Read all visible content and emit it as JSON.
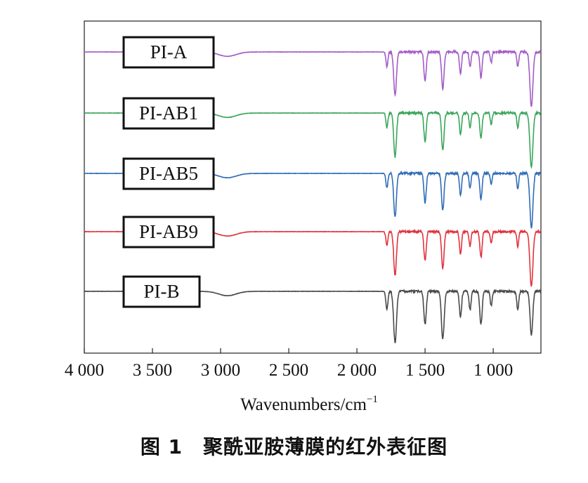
{
  "chart_data": {
    "type": "line",
    "title": "",
    "xlabel": "Wavenumbers/cm",
    "xlabel_superscript": "−1",
    "ylabel": "",
    "xlim": [
      4000,
      650
    ],
    "x_reversed": true,
    "y_ticks_shown": false,
    "grid": false,
    "x_ticks": [
      {
        "value": 4000,
        "label": "4 000"
      },
      {
        "value": 3500,
        "label": "3 500"
      },
      {
        "value": 3000,
        "label": "3 000"
      },
      {
        "value": 2500,
        "label": "2 500"
      },
      {
        "value": 2000,
        "label": "2 000"
      },
      {
        "value": 1500,
        "label": "1 500"
      },
      {
        "value": 1000,
        "label": "1 000"
      }
    ],
    "series": [
      {
        "name": "PI-A",
        "color": "#a45cc6",
        "baseline_offset": 4,
        "peaks": [
          [
            1780,
            4
          ],
          [
            1720,
            12
          ],
          [
            1500,
            8
          ],
          [
            1370,
            10
          ],
          [
            1240,
            6
          ],
          [
            1170,
            4
          ],
          [
            1090,
            7
          ],
          [
            1015,
            3
          ],
          [
            820,
            4
          ],
          [
            720,
            15
          ]
        ]
      },
      {
        "name": "PI-AB1",
        "color": "#3aa65a",
        "baseline_offset": 3,
        "peaks": [
          [
            1780,
            4
          ],
          [
            1720,
            12
          ],
          [
            1500,
            8
          ],
          [
            1370,
            10
          ],
          [
            1240,
            6
          ],
          [
            1170,
            4
          ],
          [
            1090,
            7
          ],
          [
            1015,
            3
          ],
          [
            820,
            4
          ],
          [
            720,
            15
          ]
        ]
      },
      {
        "name": "PI-AB5",
        "color": "#2f6db8",
        "baseline_offset": 2,
        "peaks": [
          [
            1780,
            4
          ],
          [
            1720,
            12
          ],
          [
            1500,
            8
          ],
          [
            1370,
            10
          ],
          [
            1240,
            6
          ],
          [
            1170,
            4
          ],
          [
            1090,
            7
          ],
          [
            1015,
            3
          ],
          [
            820,
            4
          ],
          [
            720,
            15
          ]
        ]
      },
      {
        "name": "PI-AB9",
        "color": "#e0343f",
        "baseline_offset": 1,
        "peaks": [
          [
            1780,
            4
          ],
          [
            1720,
            12
          ],
          [
            1500,
            8
          ],
          [
            1370,
            10
          ],
          [
            1240,
            6
          ],
          [
            1170,
            4
          ],
          [
            1090,
            7
          ],
          [
            1015,
            3
          ],
          [
            820,
            4
          ],
          [
            720,
            15
          ]
        ]
      },
      {
        "name": "PI-B",
        "color": "#4a4a4a",
        "baseline_offset": 0,
        "peaks": [
          [
            1780,
            5
          ],
          [
            1720,
            14
          ],
          [
            1500,
            9
          ],
          [
            1370,
            13
          ],
          [
            1240,
            7
          ],
          [
            1170,
            5
          ],
          [
            1090,
            9
          ],
          [
            1015,
            4
          ],
          [
            820,
            5
          ],
          [
            720,
            12
          ]
        ]
      }
    ]
  },
  "caption": "图 1　聚酰亚胺薄膜的红外表征图"
}
